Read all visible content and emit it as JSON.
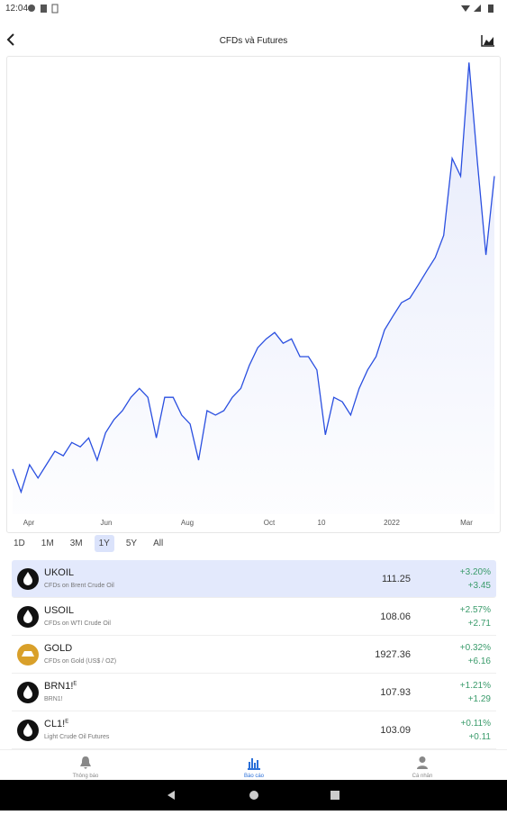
{
  "status_bar": {
    "time": "12:04"
  },
  "header": {
    "title": "CFDs và Futures"
  },
  "chart": {
    "type": "line",
    "color": "#2a4fe0",
    "x_labels": [
      "Apr",
      "Jun",
      "Aug",
      "Oct",
      "10",
      "2022",
      "Mar"
    ],
    "ylim": [
      58,
      130
    ],
    "values": [
      65.1,
      61.5,
      65.8,
      63.7,
      65.8,
      67.9,
      67.2,
      69.3,
      68.6,
      70.0,
      66.5,
      70.8,
      72.9,
      74.3,
      76.4,
      77.8,
      76.4,
      70.0,
      76.4,
      76.4,
      73.6,
      72.2,
      66.5,
      74.3,
      73.6,
      74.3,
      76.4,
      77.8,
      81.4,
      84.2,
      85.6,
      86.6,
      84.9,
      85.6,
      82.8,
      82.8,
      80.7,
      70.5,
      76.4,
      75.7,
      73.6,
      77.8,
      80.7,
      82.8,
      87.0,
      89.2,
      91.3,
      92.0,
      94.1,
      96.3,
      98.4,
      101.9,
      114.0,
      111.2,
      129.1,
      113.3,
      98.8,
      111.2
    ]
  },
  "ranges": {
    "options": [
      "1D",
      "1M",
      "3M",
      "1Y",
      "5Y",
      "All"
    ],
    "selected": "1Y"
  },
  "list": {
    "rows": [
      {
        "symbol": "UKOIL",
        "sup": "",
        "description": "CFDs on Brent Crude Oil",
        "price": "111.25",
        "percent": "+3.20%",
        "change": "+3.45",
        "icon": "oil",
        "selected": true
      },
      {
        "symbol": "USOIL",
        "sup": "",
        "description": "CFDs on WTI Crude Oil",
        "price": "108.06",
        "percent": "+2.57%",
        "change": "+2.71",
        "icon": "oil",
        "selected": false
      },
      {
        "symbol": "GOLD",
        "sup": "",
        "description": "CFDs on Gold (US$ / OZ)",
        "price": "1927.36",
        "percent": "+0.32%",
        "change": "+6.16",
        "icon": "gold",
        "selected": false
      },
      {
        "symbol": "BRN1!",
        "sup": "E",
        "description": "BRN1!",
        "price": "107.93",
        "percent": "+1.21%",
        "change": "+1.29",
        "icon": "oil",
        "selected": false
      },
      {
        "symbol": "CL1!",
        "sup": "E",
        "description": "Light Crude Oil Futures",
        "price": "103.09",
        "percent": "+0.11%",
        "change": "+0.11",
        "icon": "oil",
        "selected": false
      }
    ]
  },
  "nav": {
    "items": [
      "Thông báo",
      "Báo cáo",
      "Cá nhân"
    ]
  }
}
